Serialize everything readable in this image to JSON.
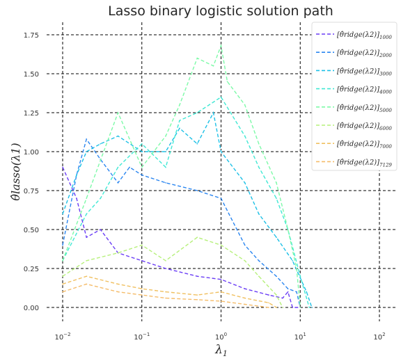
{
  "chart_data": {
    "type": "line",
    "title": "Lasso binary logistic solution path",
    "xlabel": "λ",
    "xlabel_sub": "1",
    "ylabel": "θ̂lasso(λ1)",
    "xscale": "log",
    "xlim": [
      0.01,
      100
    ],
    "ylim": [
      -0.08,
      1.84
    ],
    "xticks": [
      0.01,
      0.1,
      1,
      10,
      100
    ],
    "xtick_labels": [
      {
        "base": "10",
        "exp": "−2"
      },
      {
        "base": "10",
        "exp": "−1"
      },
      {
        "base": "10",
        "exp": "0"
      },
      {
        "base": "10",
        "exp": "1"
      },
      {
        "base": "10",
        "exp": "2"
      }
    ],
    "yticks": [
      0.0,
      0.25,
      0.5,
      0.75,
      1.0,
      1.25,
      1.5,
      1.75
    ],
    "ytick_labels": [
      "0.00",
      "0.25",
      "0.50",
      "0.75",
      "1.00",
      "1.25",
      "1.50",
      "1.75"
    ],
    "grid": true,
    "legend_position": "top-right",
    "series": [
      {
        "name": "[θ̂ridge(λ2)]1000",
        "sub": "1000",
        "color": "#6a3df5",
        "x": [
          0.01,
          0.015,
          0.02,
          0.03,
          0.05,
          0.1,
          0.2,
          0.5,
          1,
          2,
          4,
          6,
          7,
          8,
          10
        ],
        "y": [
          0.9,
          0.7,
          0.45,
          0.5,
          0.35,
          0.3,
          0.25,
          0.2,
          0.18,
          0.12,
          0.08,
          0.06,
          0.1,
          0.0,
          0.0
        ]
      },
      {
        "name": "[θ̂ridge(λ2)]2000",
        "sub": "2000",
        "color": "#2b86f0",
        "x": [
          0.01,
          0.015,
          0.02,
          0.03,
          0.05,
          0.07,
          0.1,
          0.2,
          0.5,
          1,
          2,
          3,
          5,
          7,
          9,
          10
        ],
        "y": [
          0.4,
          0.85,
          1.08,
          0.95,
          0.8,
          0.9,
          0.85,
          0.8,
          0.75,
          0.7,
          0.4,
          0.3,
          0.2,
          0.12,
          0.1,
          0.0
        ]
      },
      {
        "name": "[θ̂ridge(λ2)]3000",
        "sub": "3000",
        "color": "#1cc0e6",
        "x": [
          0.01,
          0.015,
          0.02,
          0.03,
          0.05,
          0.1,
          0.2,
          0.3,
          0.5,
          0.8,
          1,
          2,
          3,
          5,
          8,
          12,
          14
        ],
        "y": [
          0.6,
          0.85,
          1.0,
          1.05,
          1.1,
          1.0,
          1.0,
          1.15,
          1.05,
          1.25,
          1.0,
          0.8,
          0.6,
          0.45,
          0.3,
          0.1,
          0.0
        ]
      },
      {
        "name": "[θ̂ridge(λ2)]4000",
        "sub": "4000",
        "color": "#40e8d4",
        "x": [
          0.01,
          0.02,
          0.03,
          0.05,
          0.1,
          0.2,
          0.3,
          0.5,
          1,
          2,
          3,
          5,
          7,
          10,
          13
        ],
        "y": [
          0.3,
          0.6,
          0.7,
          0.9,
          1.05,
          0.9,
          1.2,
          1.25,
          1.35,
          1.1,
          0.9,
          0.7,
          0.5,
          0.2,
          0.0
        ]
      },
      {
        "name": "[θ̂ridge(λ2)]5000",
        "sub": "5000",
        "color": "#7dfaa8",
        "x": [
          0.01,
          0.02,
          0.05,
          0.1,
          0.2,
          0.3,
          0.5,
          0.8,
          1,
          1.2,
          2,
          3,
          5,
          7,
          9,
          10
        ],
        "y": [
          0.3,
          0.7,
          1.25,
          0.9,
          1.1,
          1.3,
          1.6,
          1.55,
          1.68,
          1.45,
          1.3,
          1.05,
          0.8,
          0.5,
          0.25,
          0.0
        ]
      },
      {
        "name": "[θ̂ridge(λ2)]6000",
        "sub": "6000",
        "color": "#b6f07a",
        "x": [
          0.01,
          0.02,
          0.05,
          0.1,
          0.2,
          0.5,
          1,
          2,
          3,
          5,
          6
        ],
        "y": [
          0.2,
          0.3,
          0.35,
          0.4,
          0.3,
          0.45,
          0.4,
          0.3,
          0.2,
          0.08,
          0.0
        ]
      },
      {
        "name": "[θ̂ridge(λ2)]7000",
        "sub": "7000",
        "color": "#f0c060",
        "x": [
          0.01,
          0.02,
          0.05,
          0.1,
          0.2,
          0.5,
          1,
          2,
          4,
          5
        ],
        "y": [
          0.15,
          0.2,
          0.15,
          0.12,
          0.1,
          0.08,
          0.1,
          0.06,
          0.03,
          0.0
        ]
      },
      {
        "name": "[θ̂ridge(λ2)]7129",
        "sub": "7129",
        "color": "#f5bc6a",
        "x": [
          0.01,
          0.02,
          0.05,
          0.1,
          0.2,
          0.5,
          1,
          2,
          4
        ],
        "y": [
          0.1,
          0.15,
          0.1,
          0.08,
          0.06,
          0.05,
          0.04,
          0.02,
          0.0
        ]
      }
    ]
  }
}
